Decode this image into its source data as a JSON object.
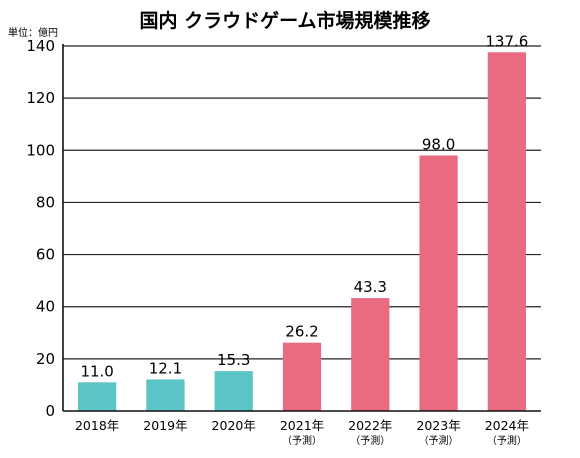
{
  "chart_data": {
    "type": "bar",
    "title": "国内 クラウドゲーム市場規模推移",
    "unit_label": "単位：億円",
    "categories": [
      "2018年",
      "2019年",
      "2020年",
      "2021年",
      "2022年",
      "2023年",
      "2024年"
    ],
    "category_sublabels": [
      "",
      "",
      "",
      "（予測）",
      "（予測）",
      "（予測）",
      "（予測）"
    ],
    "values": [
      11.0,
      12.1,
      15.3,
      26.2,
      43.3,
      98.0,
      137.6
    ],
    "value_labels": [
      "11.0",
      "12.1",
      "15.3",
      "26.2",
      "43.3",
      "98.0",
      "137.6"
    ],
    "bar_colors": [
      "#5bc4c7",
      "#5bc4c7",
      "#5bc4c7",
      "#ea6a82",
      "#ea6a82",
      "#ea6a82",
      "#ea6a82"
    ],
    "ylim": [
      0,
      140
    ],
    "yticks": [
      0,
      20,
      40,
      60,
      80,
      100,
      120,
      140
    ],
    "xlabel": "",
    "ylabel": "",
    "grid": true
  }
}
